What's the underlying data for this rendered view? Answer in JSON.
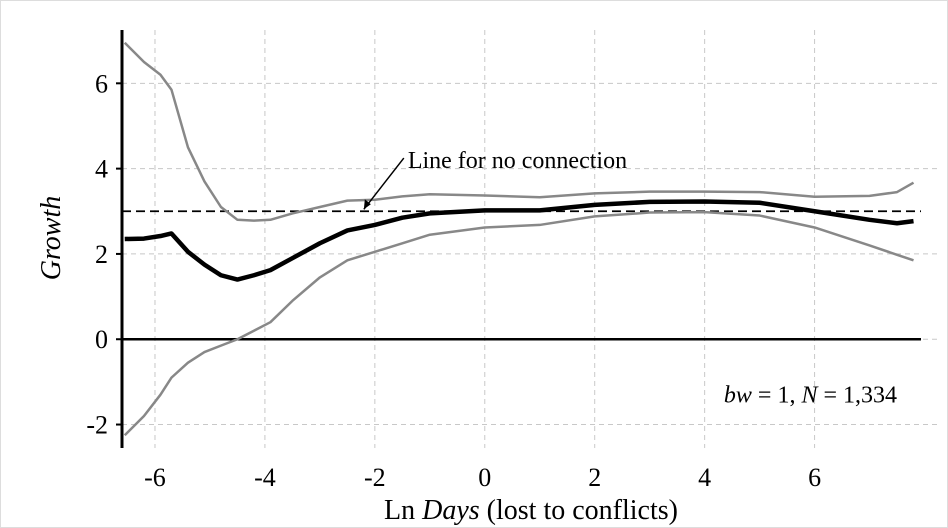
{
  "chart_data": {
    "type": "line",
    "x": [
      -6.55,
      -6.2,
      -5.9,
      -5.7,
      -5.4,
      -5.1,
      -4.8,
      -4.5,
      -4.2,
      -3.9,
      -3.5,
      -3,
      -2.5,
      -2,
      -1.5,
      -1,
      0,
      1,
      2,
      3,
      4,
      5,
      6,
      7,
      7.5,
      7.8
    ],
    "series": [
      {
        "color": "#888888",
        "width": 2.5,
        "values": [
          6.95,
          6.5,
          6.2,
          5.85,
          4.5,
          3.7,
          3.1,
          2.8,
          2.78,
          2.8,
          2.95,
          3.1,
          3.25,
          3.27,
          3.35,
          3.4,
          3.37,
          3.33,
          3.42,
          3.46,
          3.46,
          3.45,
          3.34,
          3.36,
          3.45,
          3.67
        ]
      },
      {
        "color": "#888888",
        "width": 2.5,
        "values": [
          -2.25,
          -1.8,
          -1.3,
          -0.9,
          -0.55,
          -0.3,
          -0.15,
          0.0,
          0.2,
          0.4,
          0.9,
          1.45,
          1.85,
          2.05,
          2.25,
          2.45,
          2.62,
          2.68,
          2.88,
          2.97,
          2.98,
          2.9,
          2.62,
          2.2,
          1.98,
          1.85
        ]
      },
      {
        "color": "#000000",
        "width": 4.5,
        "values": [
          2.35,
          2.36,
          2.42,
          2.48,
          2.05,
          1.75,
          1.5,
          1.4,
          1.5,
          1.62,
          1.9,
          2.25,
          2.55,
          2.68,
          2.85,
          2.95,
          3.02,
          3.02,
          3.15,
          3.22,
          3.23,
          3.2,
          3.0,
          2.8,
          2.72,
          2.77
        ]
      }
    ],
    "xlabel": [
      "Ln ",
      "Days",
      " (lost to conflicts)"
    ],
    "ylabel": "Growth",
    "xlim": [
      -6.6,
      8.3
    ],
    "ylim": [
      -2.55,
      7.25
    ],
    "xticks": [
      -6,
      -4,
      -2,
      0,
      2,
      4,
      6
    ],
    "yticks": [
      -2,
      0,
      2,
      4,
      6
    ],
    "grid": true,
    "reference_lines": [
      {
        "y": 3,
        "style": "dashed"
      },
      {
        "y": 0,
        "style": "solid"
      }
    ],
    "annotations": [
      {
        "text": "Line for no connection",
        "xy": [
          -2.2,
          3
        ],
        "xytext": [
          -1.4,
          4.2
        ]
      },
      {
        "parts": [
          "bw",
          " = 1, ",
          "N",
          " = 1,334"
        ],
        "xytext": [
          7.5,
          -1.3
        ]
      }
    ]
  }
}
